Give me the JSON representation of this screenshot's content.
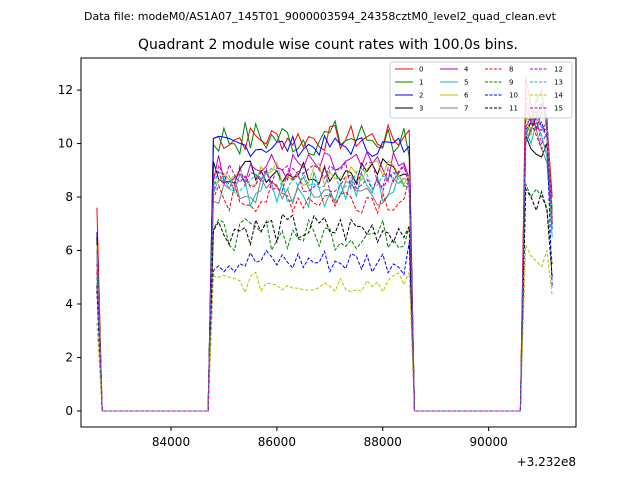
{
  "chart_data": {
    "type": "line",
    "suptitle": "Data file: modeM0/AS1A07_145T01_9000003594_24358cztM0_level2_quad_clean.evt",
    "title": "Quadrant 2 module wise count rates with 100.0s bins.",
    "xlabel": "",
    "ylabel": "",
    "x_offset_label": "+3.232e8",
    "xlim": [
      82300,
      91650
    ],
    "ylim": [
      -0.6,
      13.2
    ],
    "xticks": [
      84000,
      86000,
      88000,
      90000
    ],
    "xtick_labels": [
      "84000",
      "86000",
      "88000",
      "90000"
    ],
    "yticks": [
      0,
      2,
      4,
      6,
      8,
      10,
      12
    ],
    "ytick_labels": [
      "0",
      "2",
      "4",
      "6",
      "8",
      "10",
      "12"
    ],
    "legend_position": "upper-right",
    "grid": false,
    "segments": [
      {
        "start": 82600,
        "n": 2
      },
      {
        "start": 82700,
        "n": 21
      },
      {
        "start": 84800,
        "n": 37
      },
      {
        "start": 88500,
        "n": 2
      },
      {
        "start": 88600,
        "n": 20
      },
      {
        "start": 90600,
        "n": 7
      }
    ],
    "series": [
      {
        "name": "0",
        "color": "#ff0000",
        "dash": false,
        "first": 7.6,
        "gap": 0.0,
        "mean": 10.2,
        "var": 0.25,
        "end": 10.5,
        "o1": [
          12.5,
          11.4,
          10.5,
          11.2,
          10.8,
          8.0
        ]
      },
      {
        "name": "1",
        "color": "#008000",
        "dash": false,
        "first": 6.5,
        "gap": 0.0,
        "mean": 10.2,
        "var": 0.35,
        "end": 9.5,
        "o1": [
          10.3,
          10.8,
          11.6,
          12.0,
          10.5,
          7.5
        ]
      },
      {
        "name": "2",
        "color": "#0000ff",
        "dash": false,
        "first": 6.7,
        "gap": 0.0,
        "mean": 9.9,
        "var": 0.2,
        "end": 9.9,
        "o1": [
          10.0,
          10.5,
          11.0,
          11.5,
          11.0,
          7.0
        ]
      },
      {
        "name": "3",
        "color": "#000000",
        "dash": false,
        "first": 6.5,
        "gap": 0.0,
        "mean": 9.0,
        "var": 0.25,
        "end": 8.8,
        "o1": [
          10.3,
          9.8,
          9.6,
          9.5,
          10.0,
          6.8
        ]
      },
      {
        "name": "4",
        "color": "#bf00bf",
        "dash": false,
        "first": 6.0,
        "gap": 0.0,
        "mean": 9.1,
        "var": 0.3,
        "end": 8.7,
        "o1": [
          10.6,
          11.0,
          11.2,
          10.6,
          10.5,
          7.0
        ]
      },
      {
        "name": "5",
        "color": "#00bfbf",
        "dash": false,
        "first": 5.8,
        "gap": 0.0,
        "mean": 8.3,
        "var": 0.35,
        "end": 8.4,
        "o1": [
          10.5,
          10.0,
          10.8,
          10.3,
          9.5,
          6.5
        ]
      },
      {
        "name": "6",
        "color": "#bfbf00",
        "dash": false,
        "first": 6.2,
        "gap": 0.0,
        "mean": 8.9,
        "var": 0.25,
        "end": 8.8,
        "o1": [
          11.0,
          10.3,
          11.8,
          11.2,
          10.8,
          7.2
        ]
      },
      {
        "name": "7",
        "color": "#808080",
        "dash": false,
        "first": 6.0,
        "gap": 0.0,
        "mean": 8.2,
        "var": 0.3,
        "end": 8.6,
        "o1": [
          10.0,
          10.6,
          10.5,
          9.8,
          9.3,
          6.8
        ]
      },
      {
        "name": "8",
        "color": "#ff0000",
        "dash": true,
        "first": 5.0,
        "gap": 0.0,
        "mean": 8.0,
        "var": 0.3,
        "end": 8.7,
        "o1": [
          12.0,
          10.8,
          10.3,
          9.8,
          10.0,
          6.8
        ]
      },
      {
        "name": "9",
        "color": "#008000",
        "dash": true,
        "first": 4.8,
        "gap": 0.0,
        "mean": 6.6,
        "var": 0.3,
        "end": 6.9,
        "o1": [
          8.5,
          8.0,
          8.3,
          8.0,
          7.6,
          5.5
        ]
      },
      {
        "name": "10",
        "color": "#0000ff",
        "dash": true,
        "first": 4.5,
        "gap": 0.0,
        "mean": 5.6,
        "var": 0.25,
        "end": 6.3,
        "o1": [
          10.5,
          10.8,
          10.6,
          10.8,
          10.2,
          4.6
        ]
      },
      {
        "name": "11",
        "color": "#000000",
        "dash": true,
        "first": 4.7,
        "gap": 0.0,
        "mean": 6.8,
        "var": 0.3,
        "end": 6.9,
        "o1": [
          8.3,
          8.0,
          7.5,
          8.2,
          7.5,
          5.0
        ]
      },
      {
        "name": "12",
        "color": "#bf00bf",
        "dash": true,
        "first": 5.2,
        "gap": 0.0,
        "mean": 8.7,
        "var": 0.25,
        "end": 8.5,
        "o1": [
          11.2,
          11.0,
          10.6,
          10.5,
          10.8,
          7.0
        ]
      },
      {
        "name": "13",
        "color": "#00bfbf",
        "dash": true,
        "first": 5.0,
        "gap": 0.0,
        "mean": 8.6,
        "var": 0.25,
        "end": 8.6,
        "o1": [
          11.0,
          10.8,
          11.2,
          10.6,
          10.2,
          6.8
        ]
      },
      {
        "name": "14",
        "color": "#bfbf00",
        "dash": true,
        "first": 3.3,
        "gap": 0.0,
        "mean": 4.8,
        "var": 0.2,
        "end": 5.2,
        "o1": [
          6.2,
          5.8,
          5.6,
          5.4,
          6.0,
          4.3
        ]
      },
      {
        "name": "15",
        "color": "#bf00bf",
        "dash": true,
        "first": 5.5,
        "gap": 0.0,
        "mean": 8.8,
        "var": 0.25,
        "end": 8.4,
        "o1": [
          11.5,
          10.8,
          11.0,
          10.0,
          10.4,
          7.2
        ]
      }
    ]
  }
}
